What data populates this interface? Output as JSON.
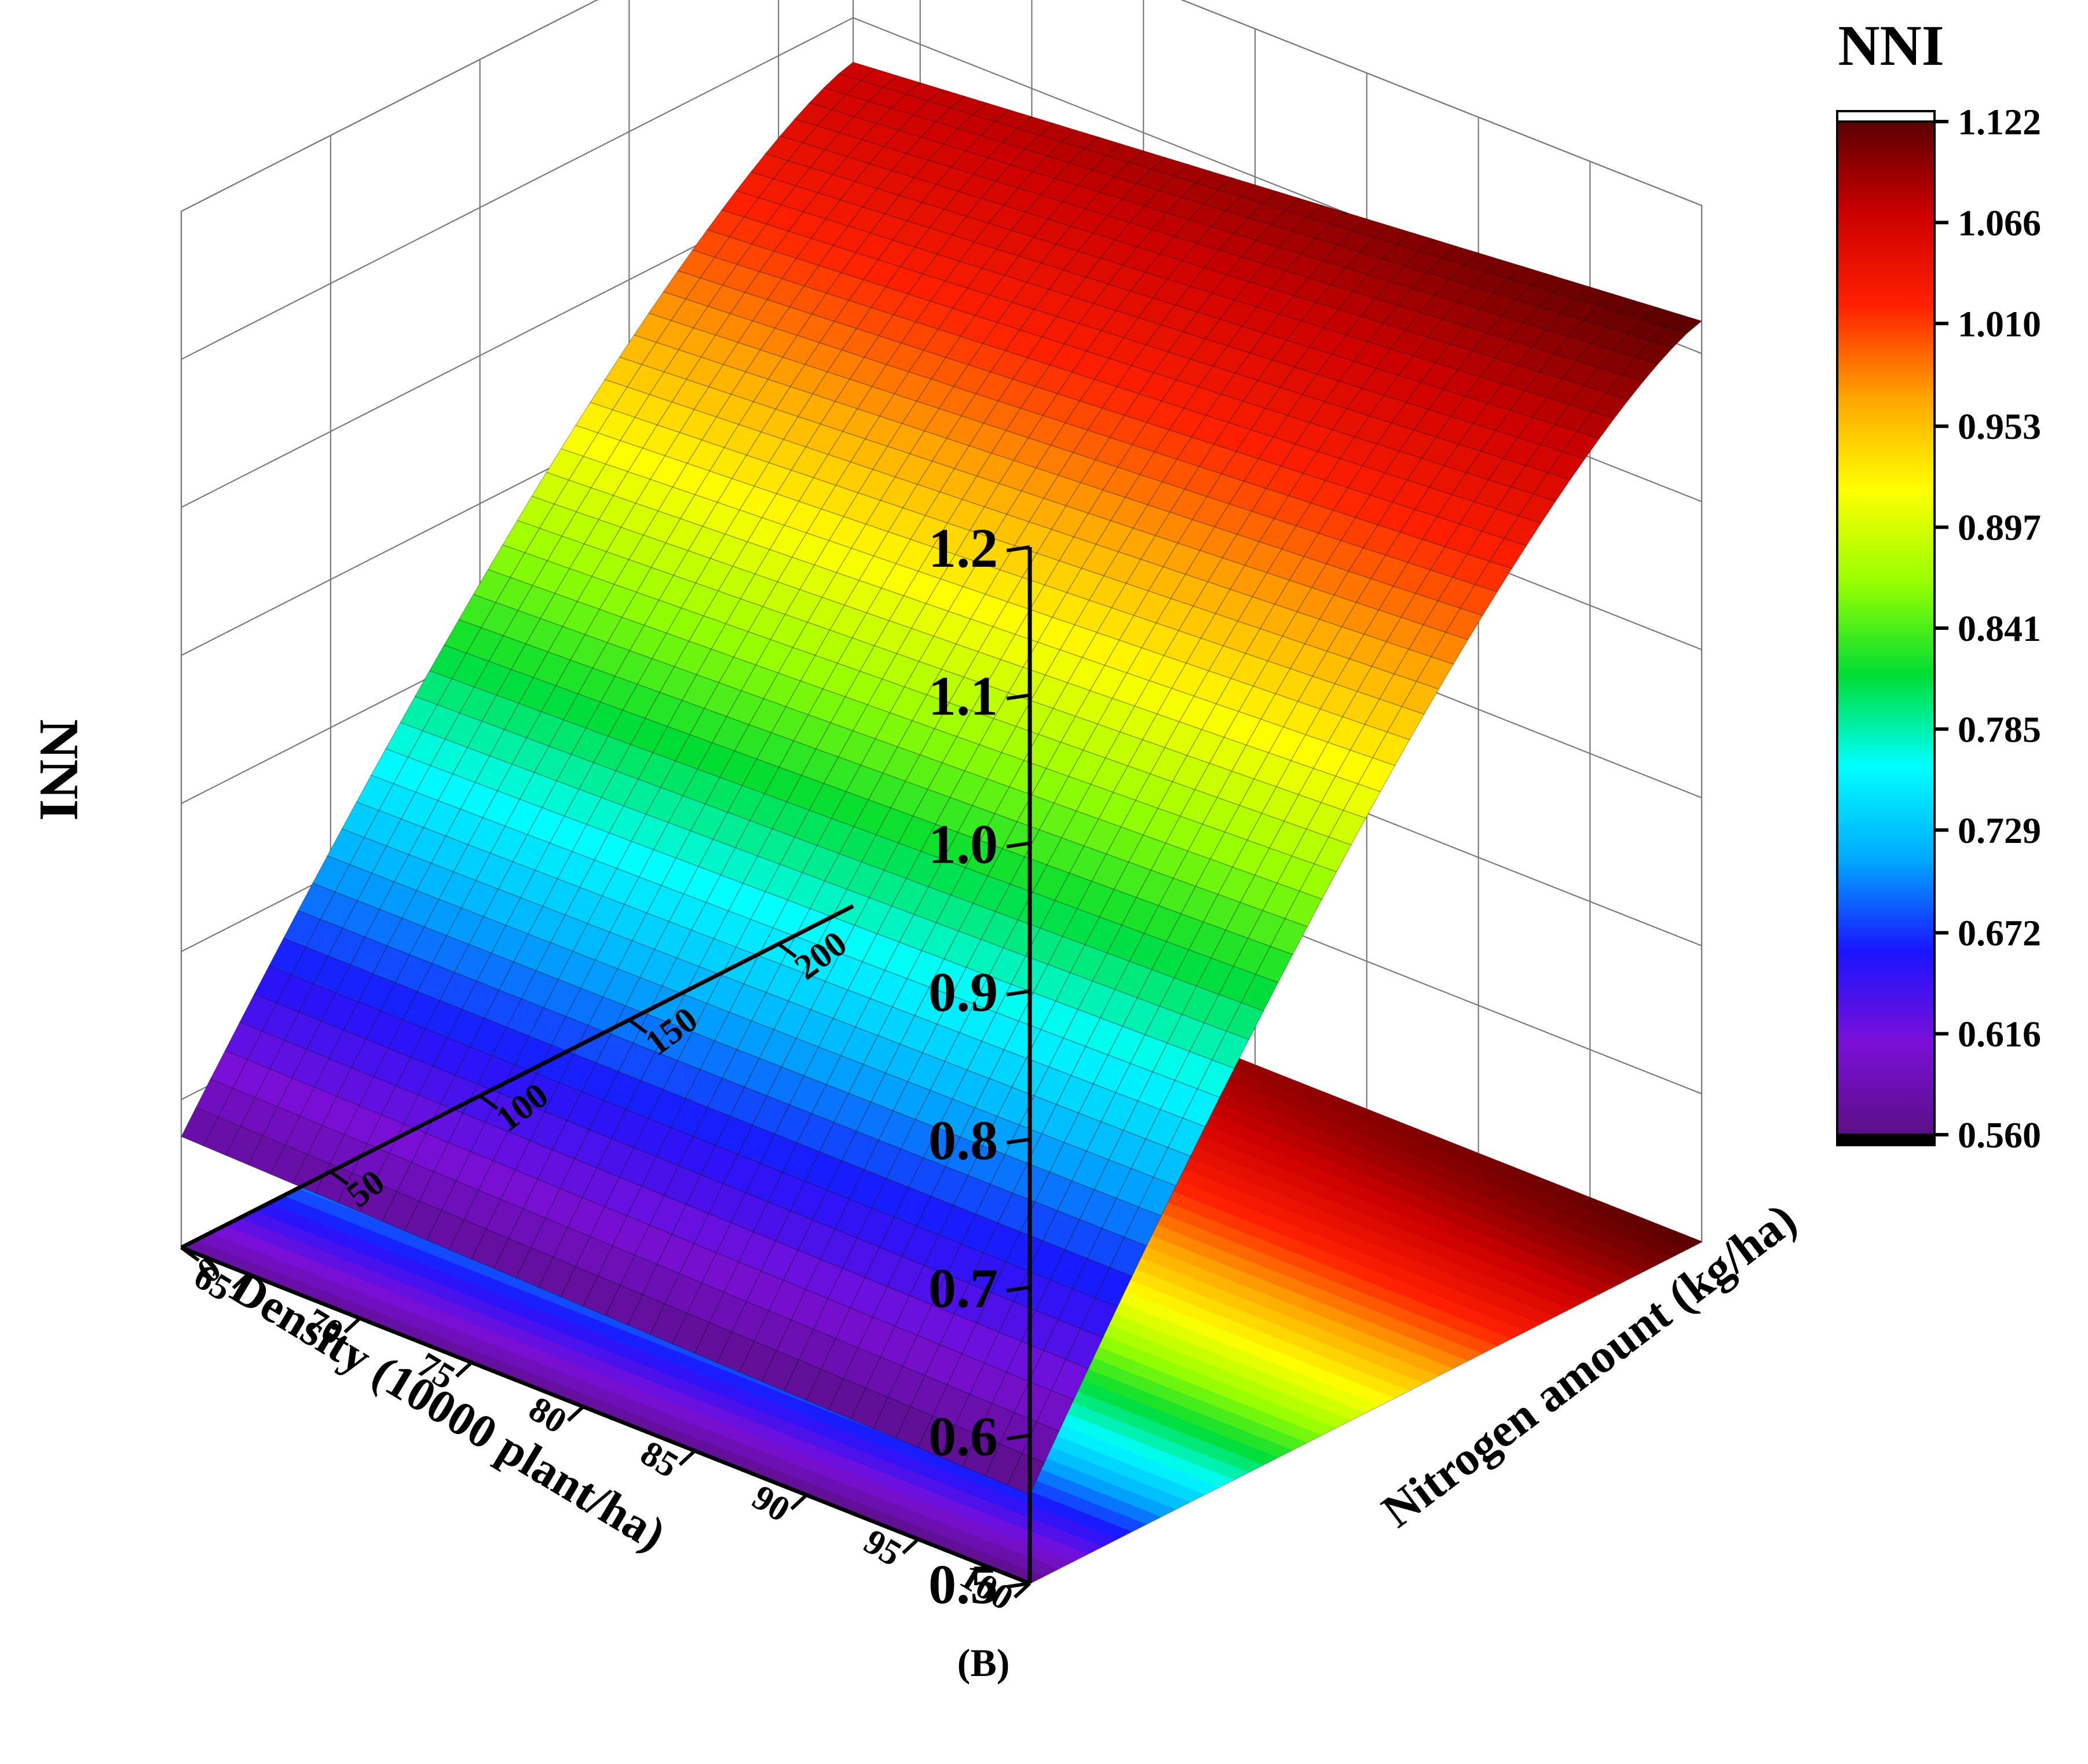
{
  "chart_data": {
    "type": "surface3d",
    "panel_label": "(B)",
    "x_axis": {
      "label": "Density (10000 plant/ha)",
      "ticks": [
        65,
        70,
        75,
        80,
        85,
        90,
        95,
        100
      ],
      "range": [
        62,
        100
      ]
    },
    "y_axis": {
      "label": "Nitrogen amount (kg/ha)",
      "ticks": [
        0,
        50,
        100,
        150,
        200
      ],
      "range": [
        0,
        225
      ]
    },
    "z_axis": {
      "label": "NNI",
      "ticks": [
        "0.5",
        "0.6",
        "0.7",
        "0.8",
        "0.9",
        "1.0",
        "1.1",
        "1.2"
      ],
      "range": [
        0.5,
        1.2
      ]
    },
    "colorbar": {
      "title": "NNI",
      "ticks": [
        "1.122",
        "1.066",
        "1.010",
        "0.953",
        "0.897",
        "0.841",
        "0.785",
        "0.729",
        "0.672",
        "0.616",
        "0.560"
      ],
      "range": [
        0.56,
        1.122
      ]
    },
    "surface_samples": [
      {
        "density": 62,
        "nitrogen": 0,
        "nni": 0.575
      },
      {
        "density": 100,
        "nitrogen": 0,
        "nni": 0.56
      },
      {
        "density": 62,
        "nitrogen": 225,
        "nni": 1.07
      },
      {
        "density": 100,
        "nitrogen": 225,
        "nni": 1.122
      }
    ],
    "colormap": [
      "#000000",
      "#5b0f85",
      "#7a0fd8",
      "#1a14ff",
      "#00aaff",
      "#00ffff",
      "#00dd33",
      "#99ff00",
      "#ffff00",
      "#ffa500",
      "#ff2000",
      "#cc0000",
      "#5a0000",
      "#ffffff"
    ],
    "grid": true
  }
}
